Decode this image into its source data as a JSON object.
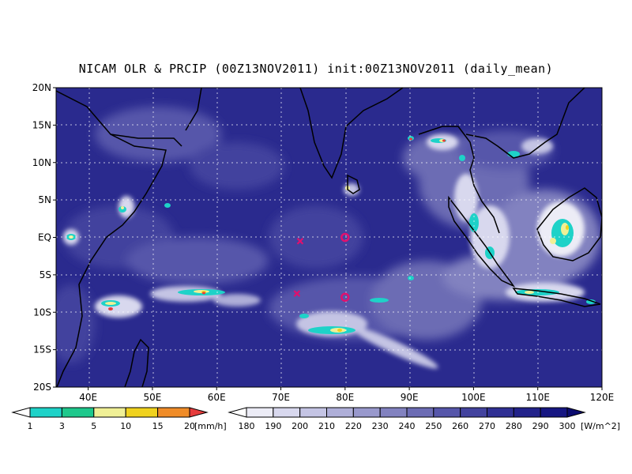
{
  "title": "NICAM OLR & PRCIP (00Z13NOV2011) init:00Z13NOV2011 (daily_mean)",
  "lat_labels": [
    "20N",
    "15N",
    "10N",
    "5N",
    "EQ",
    "5S",
    "10S",
    "15S",
    "20S"
  ],
  "lon_labels": [
    "40E",
    "50E",
    "60E",
    "70E",
    "80E",
    "90E",
    "100E",
    "110E",
    "120E"
  ],
  "precip": {
    "labels": [
      "1",
      "3",
      "5",
      "10",
      "15",
      "20"
    ],
    "unit": "[mm/h]",
    "colors": [
      "#ffffff",
      "#1ed2c8",
      "#1ec88c",
      "#f0f096",
      "#f0d21e",
      "#f08c28",
      "#e63c3c"
    ]
  },
  "olr": {
    "labels": [
      "180",
      "190",
      "200",
      "210",
      "220",
      "230",
      "240",
      "250",
      "260",
      "270",
      "280",
      "290",
      "300"
    ],
    "unit": "[W/m^2]",
    "colors": [
      "#ffffff",
      "#ececf6",
      "#d8d8ee",
      "#c4c4e4",
      "#aeaed8",
      "#9898cc",
      "#8282c0",
      "#6c6cb4",
      "#5656aa",
      "#42429e",
      "#303094",
      "#22228a",
      "#161682",
      "#0c0c70"
    ]
  },
  "markers": {
    "circles": [
      {
        "lon": 80,
        "lat": 0
      },
      {
        "lon": 80,
        "lat": -8
      }
    ],
    "crosses": [
      {
        "lon": 73,
        "lat": -0.5
      },
      {
        "lon": 72.5,
        "lat": -7.5
      }
    ],
    "color": "#e0106e"
  },
  "extent": {
    "lon": [
      35,
      120
    ],
    "lat": [
      -20,
      20
    ]
  }
}
